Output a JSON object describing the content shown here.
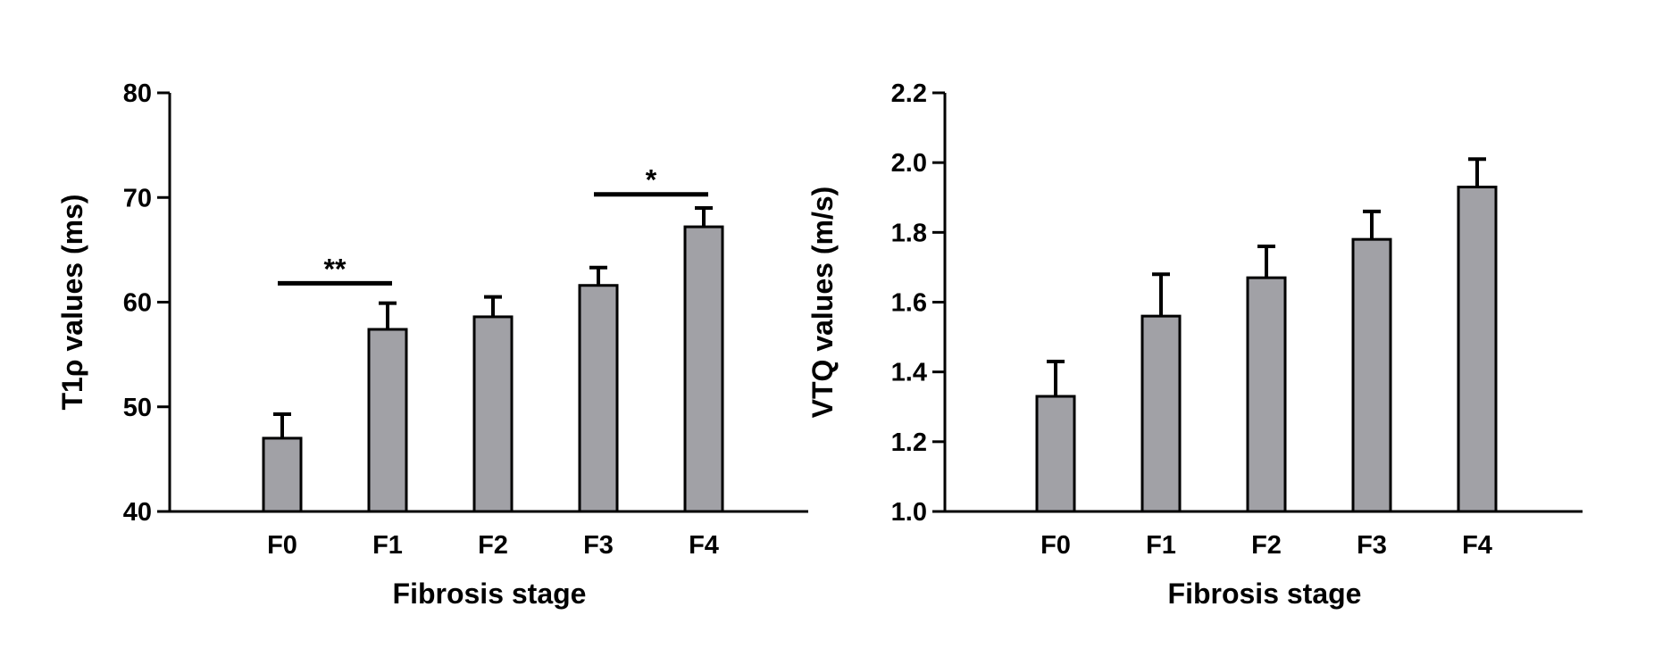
{
  "chart_data": [
    {
      "type": "bar",
      "title": "",
      "xlabel": "Fibrosis stage",
      "ylabel": "T1ρ values (ms)",
      "categories": [
        "F0",
        "F1",
        "F2",
        "F3",
        "F4"
      ],
      "values": [
        47.0,
        57.4,
        58.6,
        61.6,
        67.2
      ],
      "error_upper": [
        2.3,
        2.5,
        1.9,
        1.7,
        1.8
      ],
      "ylim": [
        40,
        80
      ],
      "yticks": [
        40,
        50,
        60,
        70,
        80
      ],
      "ytick_labels": [
        "40",
        "50",
        "60",
        "70",
        "80"
      ],
      "bar_color": "#a1a1a6",
      "significance": [
        {
          "from": "F0",
          "to": "F1",
          "label": "**",
          "y": 61.8
        },
        {
          "from": "F3",
          "to": "F4",
          "label": "*",
          "y": 70.3
        }
      ],
      "grid": false,
      "legend": "none"
    },
    {
      "type": "bar",
      "title": "",
      "xlabel": "Fibrosis stage",
      "ylabel": "VTQ values (m/s)",
      "categories": [
        "F0",
        "F1",
        "F2",
        "F3",
        "F4"
      ],
      "values": [
        1.33,
        1.56,
        1.67,
        1.78,
        1.93
      ],
      "error_upper": [
        0.1,
        0.12,
        0.09,
        0.08,
        0.08
      ],
      "ylim": [
        1.0,
        2.2
      ],
      "yticks": [
        1.0,
        1.2,
        1.4,
        1.6,
        1.8,
        2.0,
        2.2
      ],
      "ytick_labels": [
        "1.0",
        "1.2",
        "1.4",
        "1.6",
        "1.8",
        "2.0",
        "2.2"
      ],
      "bar_color": "#a1a1a6",
      "significance": [],
      "grid": false,
      "legend": "none"
    }
  ]
}
